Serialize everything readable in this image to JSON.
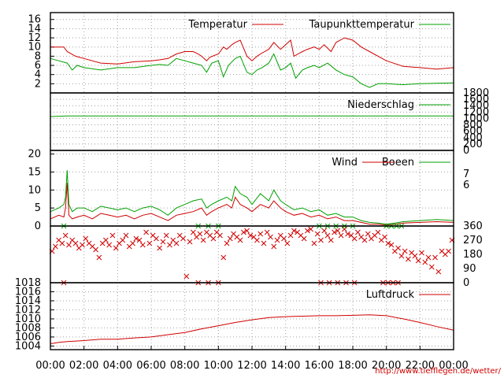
{
  "footer_url": "http://www.tiefflegen.de/wetter/",
  "chart_data": [
    {
      "type": "line",
      "xlabel": "",
      "ylabel": "",
      "ylim": [
        0,
        17.5
      ],
      "y_ticks": [
        "2",
        "4",
        "6",
        "8",
        "10",
        "12",
        "14",
        "16"
      ],
      "x_range": [
        0,
        24
      ],
      "x_ticks": [
        "00:00",
        "02:00",
        "04:00",
        "06:00",
        "08:00",
        "10:00",
        "12:00",
        "14:00",
        "16:00",
        "18:00",
        "20:00",
        "22:00",
        "00:00"
      ],
      "grid": true,
      "legend_position": "top-right",
      "series": [
        {
          "name": "Temperatur",
          "color": "#d00000",
          "x": [
            0,
            0.8,
            1,
            1.5,
            2,
            3,
            4,
            5,
            6,
            6.5,
            7,
            7.5,
            8,
            8.5,
            8.8,
            9,
            9.3,
            9.5,
            10,
            10.3,
            10.5,
            10.8,
            11,
            11.3,
            11.7,
            12,
            12.3,
            12.5,
            13,
            13.3,
            13.7,
            14,
            14.3,
            14.5,
            15,
            15.3,
            15.7,
            16,
            16.3,
            16.7,
            17,
            17.5,
            18,
            18.5,
            19,
            20,
            21,
            22,
            23,
            24
          ],
          "values": [
            10,
            10,
            9,
            8,
            7.5,
            6.5,
            6.3,
            6.8,
            7,
            7.2,
            7.5,
            8.5,
            9,
            9,
            8.5,
            8,
            7,
            7.8,
            8.5,
            10,
            9.5,
            10.5,
            11,
            11.5,
            8,
            7,
            8,
            8.5,
            9.5,
            11,
            9.5,
            10.5,
            11.5,
            8,
            9,
            9.5,
            10,
            9.5,
            10.5,
            9,
            11,
            12,
            11.5,
            10,
            9,
            7,
            5.8,
            5.5,
            5.2,
            5.5
          ]
        },
        {
          "name": "Taupunkttemperatur",
          "color": "#00a000",
          "x": [
            0,
            0.5,
            1,
            1.3,
            1.6,
            2,
            3,
            4,
            5,
            6,
            6.5,
            7,
            7.5,
            8,
            8.5,
            9,
            9.3,
            9.6,
            10,
            10.3,
            10.6,
            11,
            11.3,
            11.7,
            12,
            12.3,
            12.6,
            13,
            13.3,
            13.7,
            14,
            14.3,
            14.6,
            15,
            15.3,
            15.7,
            16,
            16.5,
            17,
            17.5,
            18,
            18.5,
            19,
            19.5,
            20,
            21,
            22,
            23,
            24
          ],
          "values": [
            7.5,
            7,
            6.5,
            5,
            6,
            5.5,
            5,
            5.5,
            5.5,
            6,
            6.2,
            6,
            7.5,
            7,
            6.5,
            6,
            4.5,
            6.5,
            7,
            3.5,
            6,
            7.5,
            8,
            4.5,
            4,
            5,
            5.5,
            6.5,
            8.5,
            5,
            5.5,
            6.5,
            3.2,
            5,
            5.5,
            6,
            5.5,
            6.5,
            5,
            4,
            3.5,
            2,
            1.2,
            2,
            2,
            1.8,
            2,
            2.1,
            2.2
          ]
        }
      ]
    },
    {
      "type": "line",
      "ylim": [
        0,
        1800
      ],
      "y_ticks": [
        "0",
        "200",
        "400",
        "600",
        "800",
        "1000",
        "1200",
        "1400",
        "1600",
        "1800"
      ],
      "x_range": [
        0,
        24
      ],
      "grid": true,
      "legend_position": "top-right",
      "series": [
        {
          "name": "Niederschlag",
          "color": "#00a000",
          "x": [
            0,
            0.5,
            1,
            24
          ],
          "values": [
            1060,
            1070,
            1080,
            1080
          ]
        }
      ]
    },
    {
      "type": "line",
      "ylim": [
        0,
        21
      ],
      "y_ticks": [
        "0",
        "5",
        "10",
        "15",
        "20"
      ],
      "right_labels": [
        "7",
        "6"
      ],
      "x_range": [
        0,
        24
      ],
      "grid": true,
      "legend_position": "top-right",
      "series": [
        {
          "name": "Wind",
          "color": "#d00000",
          "x": [
            0,
            0.5,
            0.8,
            0.9,
            1.0,
            1.1,
            1.3,
            1.6,
            2,
            2.5,
            3,
            3.5,
            4,
            4.5,
            5,
            5.5,
            6,
            6.5,
            7,
            7.5,
            8,
            8.5,
            9,
            9.3,
            9.6,
            10,
            10.5,
            10.8,
            11,
            11.3,
            11.7,
            12,
            12.5,
            13,
            13.3,
            13.7,
            14,
            14.5,
            15,
            15.5,
            16,
            16.5,
            17,
            17.5,
            18,
            18.5,
            19,
            19.5,
            20,
            20.5,
            21,
            22,
            23,
            24
          ],
          "values": [
            2,
            3,
            2.5,
            5,
            12,
            3,
            2,
            2.5,
            3,
            2,
            3.5,
            3,
            2.5,
            3,
            2,
            3,
            3.5,
            2.5,
            1.5,
            3,
            3.5,
            4,
            5,
            3,
            4,
            5,
            6,
            5,
            8,
            6,
            5,
            4,
            6,
            5,
            7,
            5,
            4,
            3,
            3.5,
            2.5,
            3,
            2,
            2.5,
            1.5,
            1.5,
            1,
            0.5,
            0.5,
            0.3,
            0.5,
            0.8,
            1,
            1.2,
            1
          ]
        },
        {
          "name": "Boeen",
          "color": "#00a000",
          "x": [
            0,
            0.5,
            0.8,
            0.9,
            1.0,
            1.1,
            1.3,
            1.6,
            2,
            2.5,
            3,
            3.5,
            4,
            4.5,
            5,
            5.5,
            6,
            6.5,
            7,
            7.5,
            8,
            8.5,
            9,
            9.3,
            9.6,
            10,
            10.5,
            10.8,
            11,
            11.3,
            11.7,
            12,
            12.5,
            13,
            13.3,
            13.7,
            14,
            14.5,
            15,
            15.5,
            16,
            16.5,
            17,
            17.5,
            18,
            18.5,
            19,
            19.5,
            20,
            20.5,
            21,
            22,
            23,
            24
          ],
          "values": [
            4,
            5,
            6,
            8,
            15.5,
            6,
            4,
            5,
            5,
            4,
            5.5,
            5,
            4.5,
            5,
            4,
            5,
            5.5,
            4.5,
            3,
            5,
            6,
            7,
            7.5,
            5,
            6,
            7,
            8,
            7,
            11,
            9,
            8,
            6,
            9,
            7,
            10,
            7,
            6,
            4.5,
            5,
            4,
            4.5,
            3,
            3.5,
            2.5,
            2.5,
            1.5,
            1,
            0.8,
            0.5,
            0.8,
            1.2,
            1.5,
            1.8,
            1.5
          ]
        }
      ]
    },
    {
      "type": "scatter",
      "ylim": [
        0,
        360
      ],
      "y_ticks_right": [
        "0",
        "90",
        "180",
        "270",
        "360"
      ],
      "x_range": [
        0,
        24
      ],
      "grid": true,
      "series": [
        {
          "name": "",
          "color": "#d00000",
          "marker": "x",
          "x": [
            0.1,
            0.3,
            0.5,
            0.7,
            0.9,
            1.1,
            1.3,
            1.5,
            1.7,
            1.9,
            2.1,
            2.3,
            2.5,
            2.7,
            2.9,
            3.1,
            3.3,
            3.5,
            3.7,
            3.9,
            4.1,
            4.3,
            4.5,
            4.7,
            4.9,
            5.1,
            5.3,
            5.5,
            5.7,
            5.9,
            6.1,
            6.3,
            6.5,
            6.7,
            6.9,
            7.1,
            7.3,
            7.5,
            7.7,
            7.9,
            8.1,
            8.3,
            8.5,
            8.7,
            8.9,
            9.1,
            9.3,
            9.5,
            9.7,
            9.9,
            10.1,
            10.3,
            10.5,
            10.7,
            10.9,
            11.1,
            11.3,
            11.5,
            11.7,
            11.9,
            12.1,
            12.3,
            12.5,
            12.7,
            12.9,
            13.1,
            13.3,
            13.5,
            13.7,
            13.9,
            14.1,
            14.3,
            14.5,
            14.7,
            14.9,
            15.1,
            15.3,
            15.5,
            15.7,
            15.9,
            16.1,
            16.3,
            16.5,
            16.7,
            16.9,
            17.1,
            17.3,
            17.5,
            17.7,
            17.9,
            18.1,
            18.3,
            18.5,
            18.7,
            18.9,
            19.1,
            19.3,
            19.5,
            19.7,
            19.9,
            20.1,
            20.3,
            20.5,
            20.7,
            20.9,
            21.1,
            21.3,
            21.5,
            21.7,
            21.9,
            22.1,
            22.3,
            22.5,
            22.7,
            22.9,
            23.1,
            23.3,
            23.5,
            23.7,
            23.9
          ],
          "values": [
            200,
            230,
            270,
            250,
            300,
            240,
            270,
            250,
            220,
            240,
            280,
            250,
            230,
            210,
            160,
            250,
            270,
            240,
            300,
            220,
            250,
            270,
            300,
            230,
            250,
            280,
            270,
            240,
            320,
            250,
            300,
            280,
            220,
            260,
            300,
            240,
            270,
            250,
            300,
            280,
            40,
            260,
            320,
            290,
            310,
            270,
            320,
            300,
            280,
            320,
            300,
            160,
            250,
            280,
            310,
            290,
            270,
            320,
            330,
            300,
            290,
            270,
            310,
            250,
            320,
            290,
            230,
            270,
            300,
            280,
            250,
            300,
            330,
            320,
            300,
            280,
            330,
            340,
            250,
            310,
            270,
            330,
            300,
            270,
            320,
            330,
            300,
            340,
            310,
            300,
            280,
            320,
            290,
            270,
            310,
            280,
            300,
            320,
            270,
            290,
            250,
            240,
            200,
            220,
            170,
            200,
            150,
            190,
            170,
            140,
            190,
            130,
            160,
            100,
            160,
            70,
            200,
            180,
            200,
            270
          ]
        },
        {
          "name": "",
          "color": "#00a000",
          "marker": "x",
          "x": [
            0.8,
            8.8,
            9.4,
            10,
            16,
            16.5,
            17,
            17.5,
            18,
            20,
            20.3,
            20.6,
            20.9
          ],
          "values": [
            360,
            360,
            360,
            360,
            360,
            360,
            360,
            360,
            360,
            360,
            360,
            360,
            360
          ]
        },
        {
          "name": "",
          "color": "#d00000",
          "marker": "x",
          "x": [
            0.8,
            8.8,
            9.4,
            10,
            16.1,
            16.6,
            17.1,
            17.6,
            18.1,
            19.8,
            20.1,
            20.4,
            20.7
          ],
          "values": [
            0,
            0,
            0,
            0,
            0,
            0,
            0,
            0,
            0,
            0,
            0,
            0,
            0
          ]
        }
      ]
    },
    {
      "type": "line",
      "ylim": [
        1003.2,
        1018
      ],
      "y_ticks": [
        "1004",
        "1006",
        "1008",
        "1010",
        "1012",
        "1014",
        "1016",
        "1018"
      ],
      "x_ticks": [
        "00:00",
        "02:00",
        "04:00",
        "06:00",
        "08:00",
        "10:00",
        "12:00",
        "14:00",
        "16:00",
        "18:00",
        "20:00",
        "22:00",
        "00:00"
      ],
      "x_range": [
        0,
        24
      ],
      "grid": true,
      "legend_position": "top-right",
      "series": [
        {
          "name": "Luftdruck",
          "color": "#d00000",
          "x": [
            0,
            0.5,
            1,
            2,
            3,
            4,
            5,
            6,
            7,
            8,
            9,
            10,
            11,
            12,
            13,
            14,
            15,
            16,
            17,
            18,
            19,
            20,
            21,
            22,
            23,
            24
          ],
          "values": [
            1004.5,
            1004.8,
            1005,
            1005.2,
            1005.5,
            1005.5,
            1005.8,
            1006,
            1006.5,
            1007,
            1007.8,
            1008.5,
            1009.2,
            1009.8,
            1010.3,
            1010.5,
            1010.6,
            1010.7,
            1010.7,
            1010.8,
            1010.9,
            1010.7,
            1010,
            1009.2,
            1008.3,
            1007.5
          ]
        }
      ]
    }
  ]
}
